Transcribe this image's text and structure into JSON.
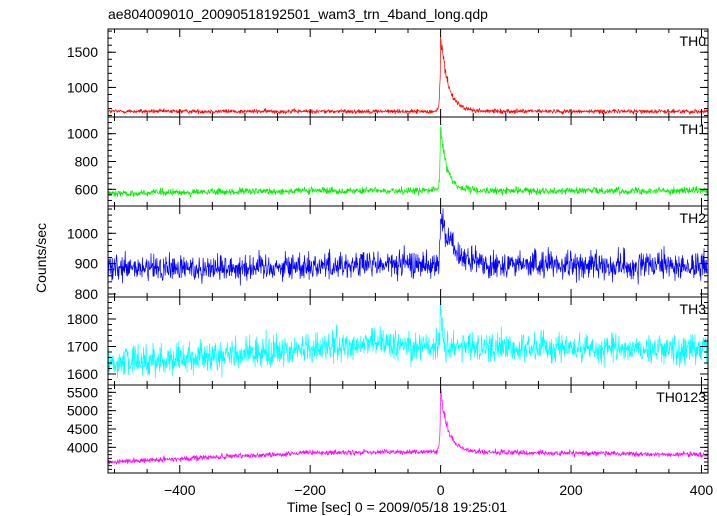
{
  "chart_data": {
    "type": "line",
    "title": "ae804009010_20090518192501_wam3_trn_4band_long.qdp",
    "xlabel": "Time [sec] 0 = 2009/05/18 19:25:01",
    "ylabel": "Counts/sec",
    "xlim": [
      -510,
      410
    ],
    "xticks": [
      -400,
      -200,
      0,
      200,
      400
    ],
    "x_tick_labels": [
      "−400",
      "−200",
      "0",
      "200",
      "400"
    ],
    "panels": [
      {
        "name": "TH0",
        "color": "#ff0000",
        "ylim": [
          580,
          1830
        ],
        "yticks": [
          1000,
          1500
        ],
        "y_tick_labels": [
          "1000",
          "1500"
        ],
        "baseline": [
          [
            -510,
            660
          ],
          [
            410,
            660
          ]
        ],
        "noise": 30,
        "peak": {
          "x": 0,
          "y": 1830,
          "decay": 12
        }
      },
      {
        "name": "TH1",
        "color": "#00ee00",
        "ylim": [
          480,
          1120
        ],
        "yticks": [
          600,
          800,
          1000
        ],
        "y_tick_labels": [
          "600",
          "800",
          "1000"
        ],
        "baseline": [
          [
            -510,
            570
          ],
          [
            -200,
            590
          ],
          [
            410,
            590
          ]
        ],
        "noise": 25,
        "peak": {
          "x": 0,
          "y": 1120,
          "decay": 10
        }
      },
      {
        "name": "TH2",
        "color": "#0000ff",
        "ylim": [
          790,
          1090
        ],
        "yticks": [
          800,
          900,
          1000
        ],
        "y_tick_labels": [
          "800",
          "900",
          "1000"
        ],
        "baseline": [
          [
            -510,
            880
          ],
          [
            -150,
            895
          ],
          [
            0,
            900
          ],
          [
            410,
            890
          ]
        ],
        "noise": 45,
        "peak": {
          "x": 0,
          "y": 1075,
          "decay": 18
        }
      },
      {
        "name": "TH3",
        "color": "#00ffff",
        "ylim": [
          1560,
          1880
        ],
        "yticks": [
          1600,
          1700,
          1800
        ],
        "y_tick_labels": [
          "1600",
          "1700",
          "1800"
        ],
        "baseline": [
          [
            -510,
            1640
          ],
          [
            -200,
            1690
          ],
          [
            -100,
            1710
          ],
          [
            0,
            1700
          ],
          [
            410,
            1690
          ]
        ],
        "noise": 55,
        "peak": {
          "x": 0,
          "y": 1870,
          "decay": 3
        }
      },
      {
        "name": "TH0123",
        "color": "#ff00ff",
        "ylim": [
          3300,
          5700
        ],
        "yticks": [
          4000,
          4500,
          5000,
          5500
        ],
        "y_tick_labels": [
          "4000",
          "4500",
          "5000",
          "5500"
        ],
        "baseline": [
          [
            -510,
            3600
          ],
          [
            -200,
            3850
          ],
          [
            0,
            3880
          ],
          [
            410,
            3800
          ]
        ],
        "noise": 70,
        "peak": {
          "x": 0,
          "y": 5700,
          "decay": 12
        }
      }
    ]
  }
}
